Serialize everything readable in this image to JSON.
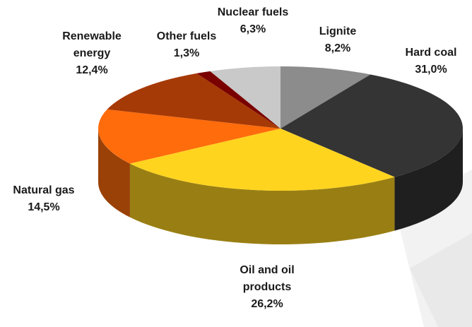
{
  "chart_data": {
    "type": "pie3d",
    "categories": [
      "Lignite",
      "Hard coal",
      "Oil and oil products",
      "Natural gas",
      "Renewable energy",
      "Other fuels",
      "Nuclear fuels"
    ],
    "values": [
      8.2,
      31.0,
      26.2,
      14.5,
      12.4,
      1.3,
      6.3
    ],
    "value_labels": [
      "8,2%",
      "31,0%",
      "26,2%",
      "14,5%",
      "12,4%",
      "1,3%",
      "6,3%"
    ],
    "colors": [
      "#8c8c8c",
      "#343434",
      "#ffd41f",
      "#ff6c0c",
      "#a63a06",
      "#7a0000",
      "#c9c9c9"
    ]
  }
}
